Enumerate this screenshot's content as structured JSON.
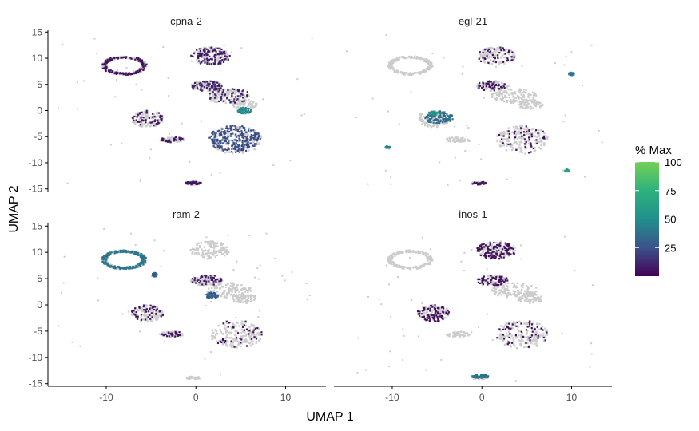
{
  "figure": {
    "xlabel": "UMAP 1",
    "ylabel": "UMAP 2"
  },
  "legend": {
    "title": "% Max",
    "ticks": [
      25,
      50,
      75,
      100
    ],
    "gradient": [
      "#440154",
      "#3b528b",
      "#21908c",
      "#2db27d",
      "#73d055"
    ],
    "range": [
      0,
      100
    ]
  },
  "colors": {
    "background_cells": "#cccccc",
    "axis": "#000000",
    "text": "#4d4d4d"
  },
  "chart_data": {
    "type": "scatter",
    "x_ticks": [
      -10,
      0,
      10
    ],
    "y_ticks": [
      15,
      10,
      5,
      0,
      -5,
      -10,
      -15
    ],
    "xlim": [
      -16.5,
      14.5
    ],
    "ylim": [
      -15.5,
      15.5
    ],
    "background_clusters": [
      {
        "cx": -8.0,
        "cy": 8.6,
        "rx": 2.5,
        "ry": 1.8,
        "ring": true
      },
      {
        "cx": 1.6,
        "cy": 10.4,
        "rx": 2.2,
        "ry": 1.7
      },
      {
        "cx": 1.2,
        "cy": 4.7,
        "rx": 1.8,
        "ry": 1.0
      },
      {
        "cx": 3.6,
        "cy": 2.8,
        "rx": 2.6,
        "ry": 1.4
      },
      {
        "cx": 5.4,
        "cy": 1.2,
        "rx": 1.4,
        "ry": 0.9
      },
      {
        "cx": -5.4,
        "cy": -1.6,
        "rx": 1.8,
        "ry": 1.6
      },
      {
        "cx": 4.5,
        "cy": -5.6,
        "rx": 2.9,
        "ry": 2.7
      },
      {
        "cx": -2.6,
        "cy": -5.6,
        "rx": 1.4,
        "ry": 0.5
      },
      {
        "cx": -0.3,
        "cy": -13.9,
        "rx": 0.9,
        "ry": 0.3
      }
    ],
    "panels": [
      {
        "gene": "cpna-2",
        "expression": [
          {
            "cx": -8.0,
            "cy": 8.6,
            "rx": 2.5,
            "ry": 1.8,
            "ring": true,
            "level": 5,
            "coverage": 0.55
          },
          {
            "cx": 1.6,
            "cy": 10.4,
            "rx": 2.2,
            "ry": 1.7,
            "level": 8,
            "coverage": 0.6
          },
          {
            "cx": 1.2,
            "cy": 4.7,
            "rx": 1.8,
            "ry": 1.0,
            "level": 10,
            "coverage": 0.55
          },
          {
            "cx": 3.6,
            "cy": 2.8,
            "rx": 2.6,
            "ry": 1.4,
            "level": 10,
            "coverage": 0.35
          },
          {
            "cx": 5.4,
            "cy": 0.0,
            "rx": 0.8,
            "ry": 0.6,
            "level": 48,
            "coverage": 1.0
          },
          {
            "cx": -5.4,
            "cy": -1.6,
            "rx": 1.8,
            "ry": 1.6,
            "level": 6,
            "coverage": 0.3
          },
          {
            "cx": 4.3,
            "cy": -5.4,
            "rx": 2.9,
            "ry": 2.6,
            "level": 24,
            "coverage": 1.0
          },
          {
            "cx": -2.6,
            "cy": -5.6,
            "rx": 1.4,
            "ry": 0.5,
            "level": 6,
            "coverage": 0.4
          },
          {
            "cx": -0.3,
            "cy": -13.9,
            "rx": 0.9,
            "ry": 0.3,
            "level": 6,
            "coverage": 0.8
          }
        ]
      },
      {
        "gene": "egl-21",
        "expression": [
          {
            "cx": 1.6,
            "cy": 10.4,
            "rx": 2.2,
            "ry": 1.7,
            "level": 5,
            "coverage": 0.25
          },
          {
            "cx": 1.2,
            "cy": 4.7,
            "rx": 1.8,
            "ry": 1.0,
            "level": 6,
            "coverage": 0.4
          },
          {
            "cx": -4.8,
            "cy": -1.3,
            "rx": 1.6,
            "ry": 1.2,
            "level": 35,
            "coverage": 0.9
          },
          {
            "cx": -5.4,
            "cy": -0.5,
            "rx": 0.5,
            "ry": 0.4,
            "level": 55,
            "coverage": 1.0
          },
          {
            "cx": 4.5,
            "cy": -5.6,
            "rx": 2.9,
            "ry": 2.7,
            "level": 5,
            "coverage": 0.18
          },
          {
            "cx": 9.5,
            "cy": -11.5,
            "rx": 0.25,
            "ry": 0.25,
            "level": 60,
            "coverage": 1.0
          },
          {
            "cx": -10.5,
            "cy": -7.0,
            "rx": 0.3,
            "ry": 0.2,
            "level": 45,
            "coverage": 1.0
          },
          {
            "cx": 10.0,
            "cy": 7.0,
            "rx": 0.3,
            "ry": 0.3,
            "level": 40,
            "coverage": 1.0
          },
          {
            "cx": -0.3,
            "cy": -13.9,
            "rx": 0.9,
            "ry": 0.3,
            "level": 6,
            "coverage": 0.5
          }
        ]
      },
      {
        "gene": "ram-2",
        "expression": [
          {
            "cx": -8.0,
            "cy": 8.6,
            "rx": 2.5,
            "ry": 1.8,
            "ring": true,
            "level": 40,
            "coverage": 1.0
          },
          {
            "cx": 1.2,
            "cy": 4.7,
            "rx": 1.8,
            "ry": 1.0,
            "level": 8,
            "coverage": 0.35
          },
          {
            "cx": 1.8,
            "cy": 1.8,
            "rx": 0.7,
            "ry": 0.6,
            "level": 30,
            "coverage": 1.0
          },
          {
            "cx": 4.5,
            "cy": -5.6,
            "rx": 2.9,
            "ry": 2.7,
            "level": 5,
            "coverage": 0.15
          },
          {
            "cx": -5.4,
            "cy": -1.6,
            "rx": 1.8,
            "ry": 1.6,
            "level": 6,
            "coverage": 0.3
          },
          {
            "cx": -2.6,
            "cy": -5.6,
            "rx": 1.4,
            "ry": 0.5,
            "level": 6,
            "coverage": 0.3
          },
          {
            "cx": -4.6,
            "cy": 5.7,
            "rx": 0.3,
            "ry": 0.4,
            "level": 30,
            "coverage": 1.0
          }
        ]
      },
      {
        "gene": "inos-1",
        "expression": [
          {
            "cx": 1.6,
            "cy": 10.4,
            "rx": 2.2,
            "ry": 1.7,
            "level": 5,
            "coverage": 0.7
          },
          {
            "cx": 1.2,
            "cy": 4.7,
            "rx": 1.8,
            "ry": 1.0,
            "level": 5,
            "coverage": 0.5
          },
          {
            "cx": -5.4,
            "cy": -1.6,
            "rx": 1.8,
            "ry": 1.6,
            "level": 5,
            "coverage": 0.5
          },
          {
            "cx": 4.5,
            "cy": -5.6,
            "rx": 2.9,
            "ry": 2.7,
            "level": 5,
            "coverage": 0.2
          },
          {
            "cx": -0.2,
            "cy": -13.6,
            "rx": 0.9,
            "ry": 0.35,
            "level": 40,
            "coverage": 1.0
          }
        ]
      }
    ]
  }
}
